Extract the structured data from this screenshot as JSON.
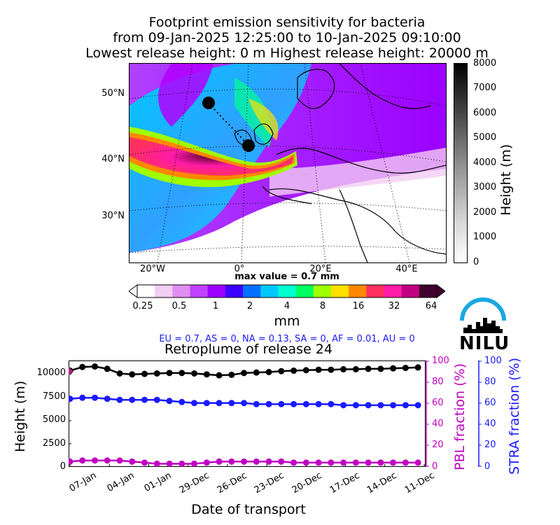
{
  "title": {
    "line1": "Footprint emission sensitivity for bacteria",
    "line2": "from 09-Jan-2025 12:25:00 to 10-Jan-2025 09:10:00",
    "line3": "Lowest release height: 0 m       Highest release height: 20000 m"
  },
  "map": {
    "lat_labels": [
      "50°N",
      "40°N",
      "30°N"
    ],
    "lon_labels": [
      "20°W",
      "0°",
      "20°E",
      "40°E"
    ],
    "height_colorbar": {
      "ticks": [
        "8000",
        "7000",
        "6000",
        "5000",
        "4000",
        "3000",
        "2000",
        "1000",
        "0"
      ],
      "label": "Height (m)"
    },
    "sensitivity_colorbar": {
      "max_value_text": "max value = 0.7 mm",
      "ticks": [
        "0.25",
        "0.5",
        "1",
        "2",
        "4",
        "8",
        "16",
        "32",
        "64"
      ],
      "unit": "mm",
      "colors": [
        "#ffffff",
        "#f3cdf3",
        "#e08ef0",
        "#c040ff",
        "#9b00ff",
        "#3c00ff",
        "#0070ff",
        "#00c8ff",
        "#00ffd0",
        "#00ff60",
        "#a0ff00",
        "#ffe000",
        "#ff8800",
        "#ff3060",
        "#ff1aa8",
        "#c00080",
        "#400030"
      ]
    }
  },
  "region_fractions": "EU = 0.7,  AS = 0,  NA = 0.13,  SA = 0,  AF = 0.01,  AU = 0",
  "logo": {
    "text": "NILU"
  },
  "chart_data": {
    "type": "line",
    "title": "Retroplume of release 24",
    "xlabel": "Date of transport",
    "x_ticks": [
      "07-Jan",
      "04-Jan",
      "01-Jan",
      "29-Dec",
      "26-Dec",
      "23-Dec",
      "20-Dec",
      "17-Dec",
      "14-Dec",
      "11-Dec"
    ],
    "x_days_back": [
      0,
      1,
      2,
      3,
      4,
      5,
      6,
      7,
      8,
      9,
      10,
      11,
      12,
      13,
      14,
      15,
      16,
      17,
      18,
      19,
      20,
      21,
      22,
      23,
      24,
      25,
      26,
      27,
      28
    ],
    "xlim": [
      0,
      28.5
    ],
    "y_left": {
      "label": "Height (m)",
      "ylim": [
        0,
        11500
      ],
      "ticks": [
        "10000",
        "7500",
        "5000",
        "2500",
        "0"
      ]
    },
    "y_right_pbl": {
      "label": "PBL fraction (%)",
      "ylim": [
        0,
        100
      ],
      "ticks": [
        "100",
        "80",
        "60",
        "40",
        "20",
        "0"
      ],
      "color": "#c000c0"
    },
    "y_right_stra": {
      "label": "STRA fraction (%)",
      "ylim": [
        0,
        100
      ],
      "ticks": [
        "100",
        "80",
        "60",
        "40",
        "20",
        "0"
      ],
      "color": "#1a1aff"
    },
    "series": [
      {
        "name": "Height",
        "color": "#000000",
        "axis": "left",
        "values": [
          10400,
          10800,
          10850,
          10600,
          10100,
          10000,
          10050,
          10100,
          10150,
          10150,
          10100,
          10000,
          9900,
          9950,
          10150,
          10200,
          10250,
          10350,
          10400,
          10450,
          10500,
          10500,
          10550,
          10550,
          10600,
          10600,
          10650,
          10700,
          10750
        ]
      },
      {
        "name": "STRA fraction",
        "color": "#1a1aff",
        "axis": "stra",
        "values": [
          64,
          65,
          65,
          64,
          63,
          63,
          63,
          63,
          62,
          61,
          60,
          60,
          60,
          60,
          60,
          59,
          59,
          59,
          59,
          59,
          59,
          59,
          58,
          58,
          58,
          58,
          58,
          58,
          58
        ]
      },
      {
        "name": "PBL fraction",
        "color": "#c000c0",
        "axis": "pbl",
        "values": [
          5,
          6,
          6,
          6,
          6,
          5,
          4,
          3,
          3,
          3,
          3,
          4,
          5,
          5,
          5,
          5,
          5,
          5,
          4,
          4,
          4,
          4,
          4,
          4,
          4,
          4,
          4,
          4,
          4
        ]
      }
    ],
    "release_marker": {
      "value_pbl": 90,
      "color": "#c0208a"
    }
  }
}
